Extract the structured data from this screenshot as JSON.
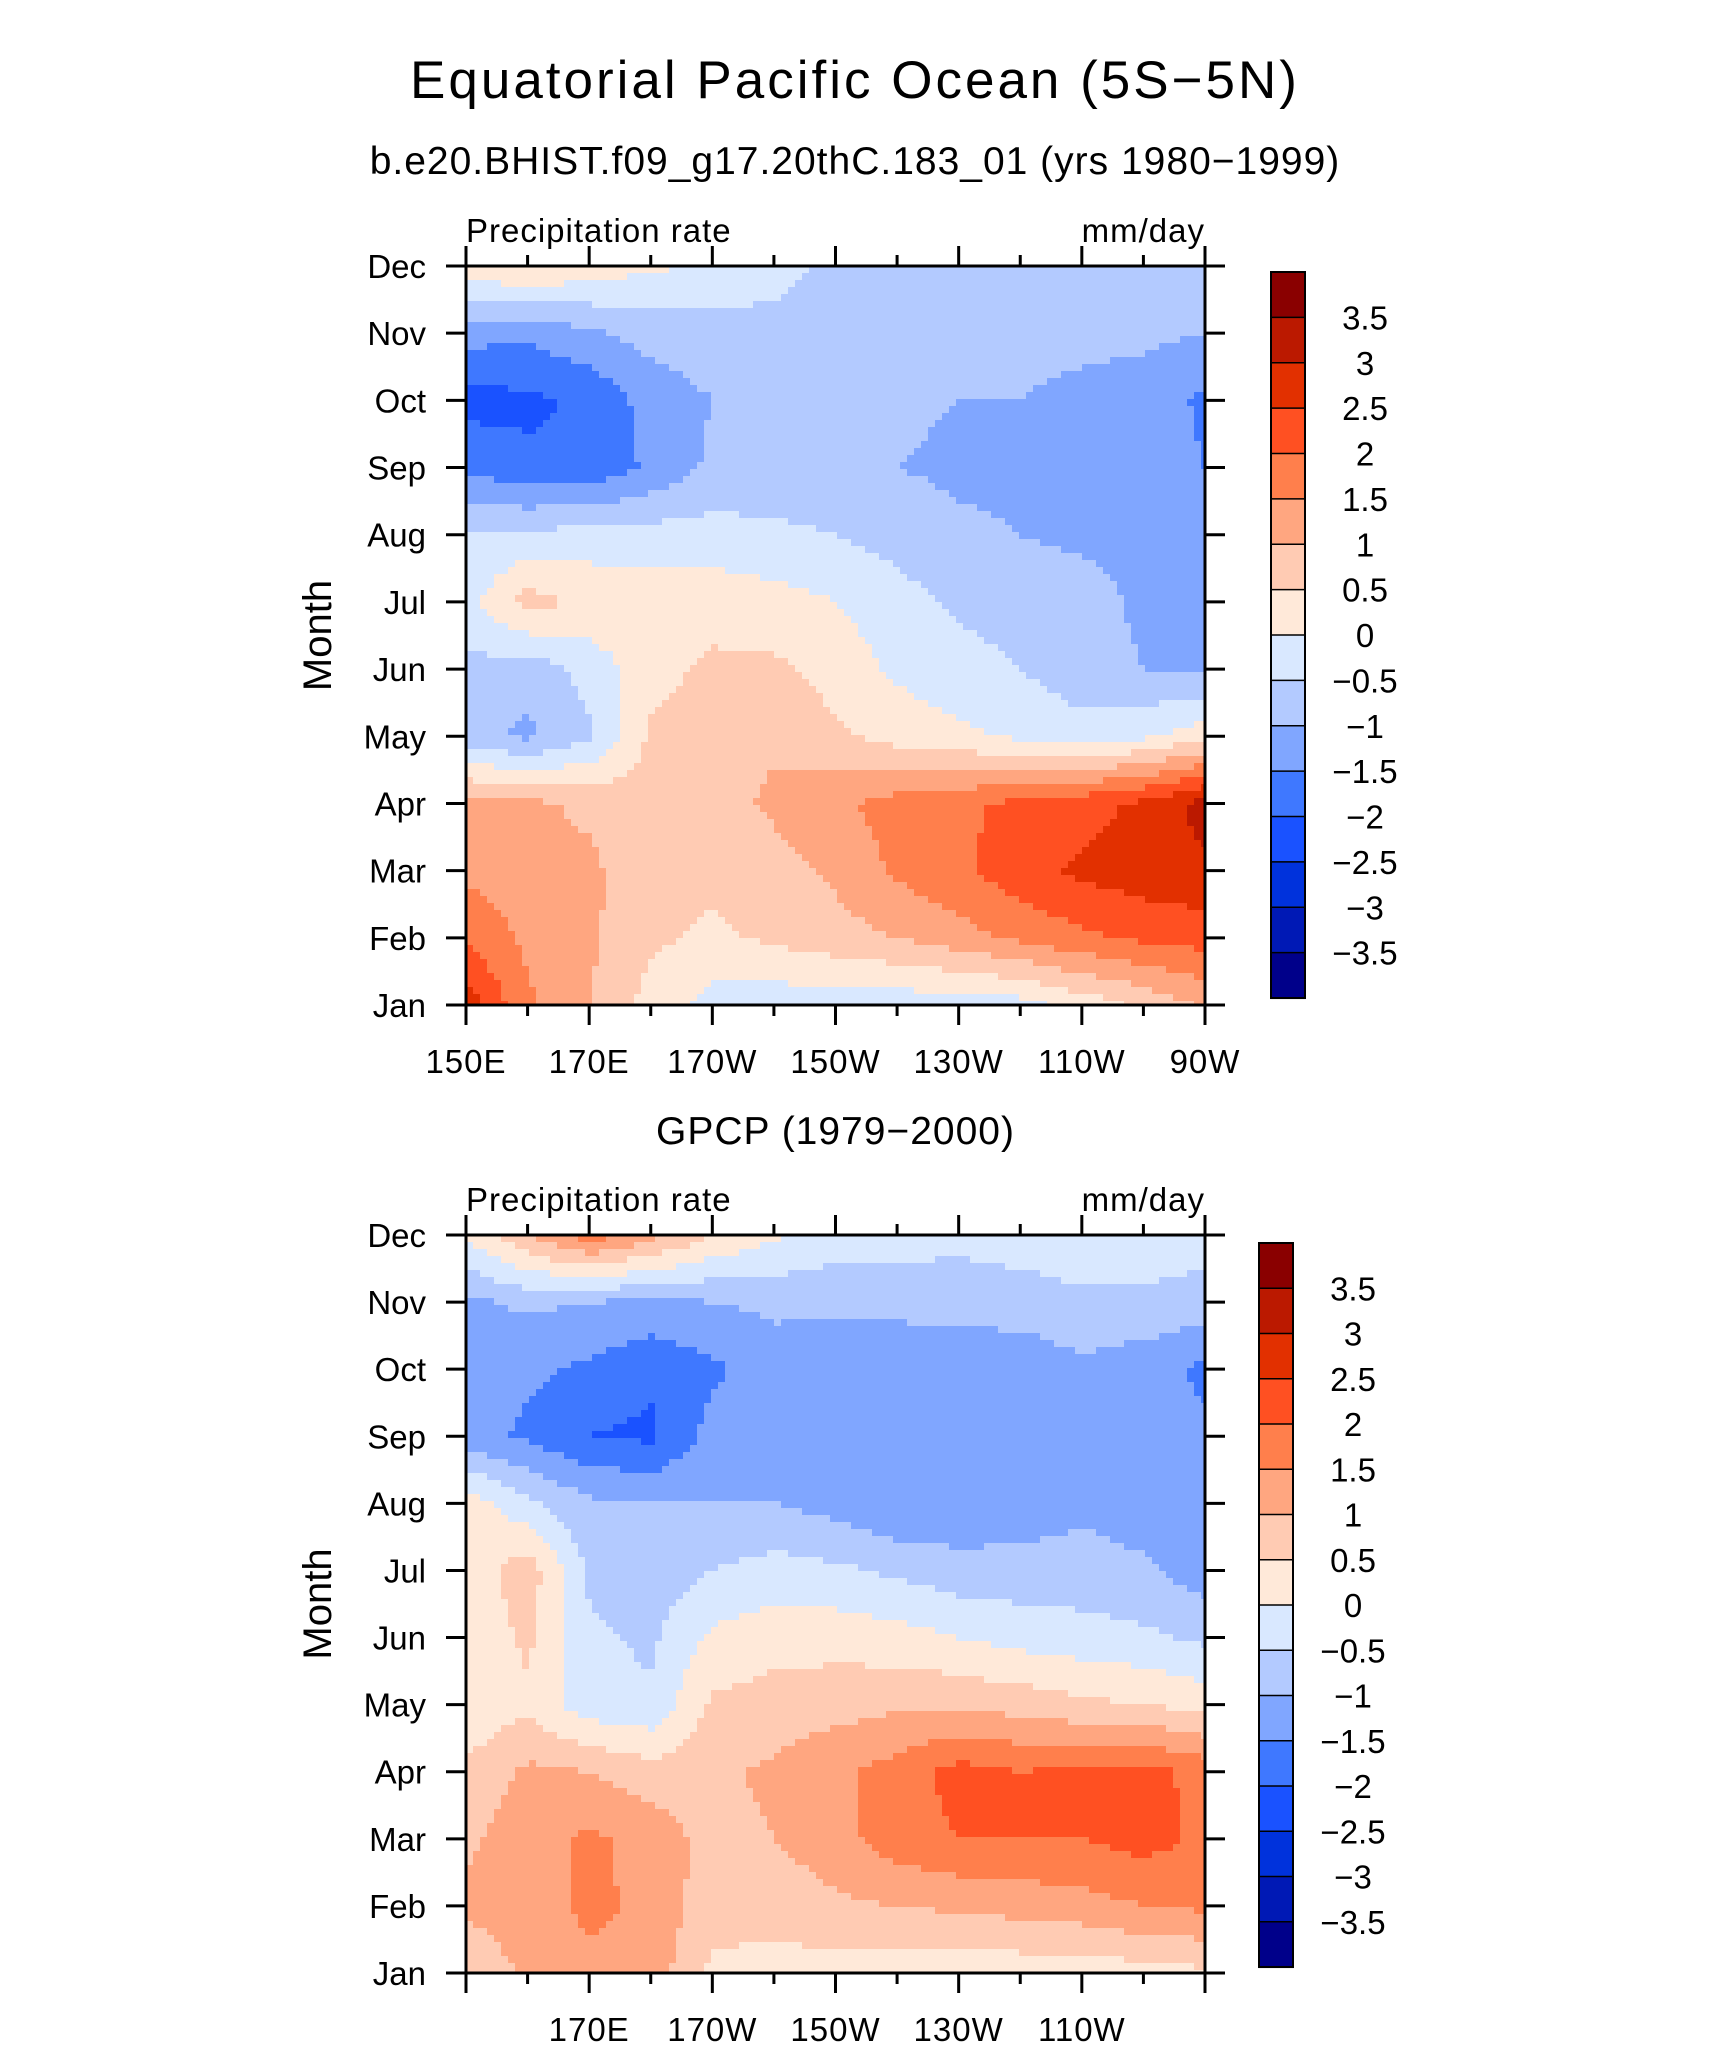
{
  "title": "Equatorial Pacific Ocean (5S−5N)",
  "subtitle": "b.e20.BHIST.f09_g17.20thC.183_01 (yrs 1980−1999)",
  "colors": {
    "levels": [
      "#00008a",
      "#0019b5",
      "#0032dc",
      "#1a52ff",
      "#3f78ff",
      "#80a6ff",
      "#b3caff",
      "#d9e8ff",
      "#ffe9d9",
      "#ffcbb3",
      "#ffa680",
      "#ff7f4c",
      "#ff5022",
      "#e23000",
      "#bb1900",
      "#8a0000"
    ]
  },
  "colorbar": {
    "labels": [
      "3.5",
      "3",
      "2.5",
      "2",
      "1.5",
      "1",
      "0.5",
      "0",
      "−0.5",
      "−1",
      "−1.5",
      "−2",
      "−2.5",
      "−3",
      "−3.5"
    ]
  },
  "chart_data": [
    {
      "type": "heatmap",
      "panel_title": "",
      "left_label": "Precipitation rate",
      "right_label": "mm/day",
      "ylabel": "Month",
      "x_tick_labels": [
        "150E",
        "170E",
        "170W",
        "150W",
        "130W",
        "110W",
        "90W"
      ],
      "y_tick_labels": [
        "Jan",
        "Feb",
        "Mar",
        "Apr",
        "May",
        "Jun",
        "Jul",
        "Aug",
        "Sep",
        "Oct",
        "Nov",
        "Dec"
      ],
      "x": [
        "150E",
        "160E",
        "170E",
        "180",
        "170W",
        "160W",
        "150W",
        "140W",
        "130W",
        "120W",
        "110W",
        "100W",
        "90W"
      ],
      "y": [
        "Jan",
        "Feb",
        "Mar",
        "Apr",
        "May",
        "Jun",
        "Jul",
        "Aug",
        "Sep",
        "Oct",
        "Nov",
        "Dec"
      ],
      "z": [
        [
          2.8,
          1.6,
          1.0,
          0.3,
          -0.2,
          -0.3,
          -0.3,
          -0.3,
          -0.3,
          -0.2,
          0.2,
          0.6,
          1.1
        ],
        [
          1.9,
          1.4,
          1.1,
          0.6,
          0.4,
          0.6,
          0.8,
          1.0,
          1.3,
          1.6,
          1.9,
          2.1,
          2.2
        ],
        [
          1.4,
          1.2,
          1.1,
          0.7,
          0.6,
          0.8,
          1.1,
          1.6,
          1.9,
          2.3,
          2.6,
          2.8,
          2.9
        ],
        [
          1.2,
          1.1,
          0.9,
          0.7,
          0.8,
          1.1,
          1.4,
          1.7,
          1.9,
          2.1,
          2.3,
          2.6,
          3.2
        ],
        [
          -0.8,
          -1.1,
          -0.6,
          0.6,
          0.9,
          0.9,
          0.6,
          0.3,
          0.1,
          -0.1,
          -0.3,
          -0.1,
          0.3
        ],
        [
          -0.6,
          -0.8,
          -0.3,
          0.3,
          0.6,
          0.6,
          0.3,
          -0.1,
          -0.3,
          -0.5,
          -0.8,
          -1.0,
          -1.1
        ],
        [
          -0.2,
          0.7,
          0.4,
          0.3,
          0.3,
          0.2,
          0.0,
          -0.3,
          -0.6,
          -0.7,
          -0.8,
          -1.1,
          -1.2
        ],
        [
          -0.5,
          -0.4,
          -0.3,
          -0.3,
          -0.3,
          -0.4,
          -0.5,
          -0.7,
          -0.9,
          -1.0,
          -1.1,
          -1.1,
          -1.3
        ],
        [
          -1.6,
          -1.9,
          -1.9,
          -1.4,
          -0.9,
          -0.8,
          -0.9,
          -1.0,
          -1.1,
          -1.1,
          -1.1,
          -1.2,
          -1.5
        ],
        [
          -2.2,
          -2.1,
          -1.9,
          -1.3,
          -1.0,
          -0.8,
          -0.8,
          -0.9,
          -1.0,
          -1.0,
          -1.1,
          -1.2,
          -1.6
        ],
        [
          -1.3,
          -1.4,
          -1.1,
          -0.8,
          -0.7,
          -0.7,
          -0.8,
          -0.8,
          -0.9,
          -0.9,
          -0.9,
          -0.9,
          -1.0
        ],
        [
          0.3,
          0.6,
          0.3,
          0.1,
          -0.1,
          -0.3,
          -0.6,
          -0.6,
          -0.6,
          -0.6,
          -0.6,
          -0.6,
          -0.7
        ]
      ]
    },
    {
      "type": "heatmap",
      "panel_title": "GPCP (1979−2000)",
      "left_label": "Precipitation rate",
      "right_label": "mm/day",
      "ylabel": "Month",
      "x_tick_labels": [
        "",
        "170E",
        "170W",
        "150W",
        "130W",
        "110W",
        ""
      ],
      "y_tick_labels": [
        "Jan",
        "Feb",
        "Mar",
        "Apr",
        "May",
        "Jun",
        "Jul",
        "Aug",
        "Sep",
        "Oct",
        "Nov",
        "Dec"
      ],
      "x": [
        "150E",
        "160E",
        "170E",
        "180",
        "170W",
        "160W",
        "150W",
        "140W",
        "130W",
        "120W",
        "110W",
        "100W",
        "90W"
      ],
      "y": [
        "Jan",
        "Feb",
        "Mar",
        "Apr",
        "May",
        "Jun",
        "Jul",
        "Aug",
        "Sep",
        "Oct",
        "Nov",
        "Dec"
      ],
      "z": [
        [
          0.6,
          1.1,
          1.4,
          1.3,
          0.4,
          0.3,
          0.3,
          0.2,
          0.1,
          0.2,
          0.2,
          0.3,
          0.4
        ],
        [
          1.1,
          1.3,
          1.6,
          1.4,
          0.7,
          0.7,
          0.9,
          1.0,
          1.1,
          1.2,
          1.3,
          1.5,
          1.6
        ],
        [
          0.9,
          1.3,
          1.6,
          1.3,
          0.8,
          1.0,
          1.3,
          1.8,
          2.0,
          2.0,
          2.0,
          2.2,
          1.9
        ],
        [
          0.6,
          1.1,
          1.0,
          0.7,
          0.9,
          1.1,
          1.4,
          1.7,
          2.2,
          2.0,
          2.1,
          2.2,
          1.8
        ],
        [
          0.1,
          0.4,
          -0.3,
          -0.4,
          0.6,
          0.7,
          0.8,
          0.9,
          0.9,
          0.8,
          0.6,
          0.5,
          0.3
        ],
        [
          0.1,
          0.6,
          -0.4,
          -0.6,
          0.1,
          0.3,
          0.3,
          0.2,
          0.0,
          -0.2,
          -0.3,
          -0.4,
          -0.6
        ],
        [
          0.2,
          0.8,
          -0.6,
          -0.8,
          -0.5,
          -0.3,
          -0.4,
          -0.6,
          -0.8,
          -0.8,
          -0.8,
          -0.9,
          -1.3
        ],
        [
          0.3,
          -0.4,
          -0.9,
          -1.0,
          -1.0,
          -1.0,
          -1.2,
          -1.5,
          -1.4,
          -1.3,
          -1.1,
          -1.3,
          -1.4
        ],
        [
          -1.3,
          -1.6,
          -2.0,
          -2.1,
          -1.3,
          -1.0,
          -1.4,
          -1.5,
          -1.5,
          -1.4,
          -1.1,
          -1.3,
          -1.4
        ],
        [
          -1.2,
          -1.4,
          -1.6,
          -1.9,
          -1.6,
          -1.2,
          -1.4,
          -1.5,
          -1.5,
          -1.4,
          -1.1,
          -1.3,
          -1.6
        ],
        [
          -1.1,
          -0.9,
          -1.0,
          -1.1,
          -1.0,
          -0.9,
          -0.9,
          -0.8,
          -0.7,
          -0.7,
          -0.6,
          -0.6,
          -0.7
        ],
        [
          0.1,
          1.0,
          1.8,
          1.2,
          0.5,
          0.1,
          -0.2,
          -0.3,
          -0.4,
          -0.3,
          -0.2,
          -0.2,
          -0.3
        ]
      ]
    }
  ]
}
